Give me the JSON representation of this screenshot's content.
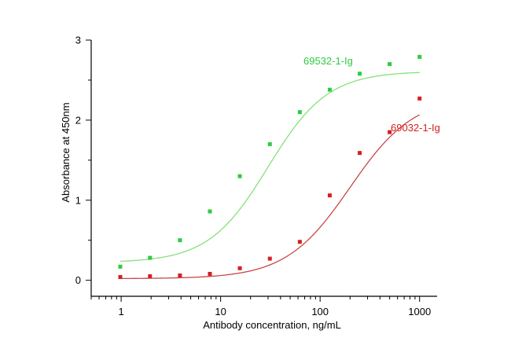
{
  "chart_data": {
    "type": "scatter",
    "title": "",
    "xlabel": "Antibody concentration, ng/mL",
    "ylabel": "Absorbance at 450nm",
    "xscale": "log",
    "xlim": [
      0.5,
      1500
    ],
    "ylim": [
      -0.2,
      3.0
    ],
    "xticks": [
      {
        "value": 1,
        "label": "1"
      },
      {
        "value": 10,
        "label": "10"
      },
      {
        "value": 100,
        "label": "100"
      },
      {
        "value": 1000,
        "label": "1000"
      }
    ],
    "yticks": [
      {
        "value": 0,
        "label": "0"
      },
      {
        "value": 1,
        "label": "1"
      },
      {
        "value": 2,
        "label": "2"
      },
      {
        "value": 3,
        "label": "3"
      }
    ],
    "grid": false,
    "fit": "4-parameter logistic (sigmoidal) curve per series",
    "series": [
      {
        "name": "69532-1-Ig",
        "color": "#2ecc40",
        "line_color": "#86e07a",
        "x": [
          0.98,
          1.95,
          3.9,
          7.8,
          15.6,
          31.25,
          62.5,
          125,
          250,
          500,
          1000
        ],
        "y": [
          0.17,
          0.28,
          0.5,
          0.86,
          1.3,
          1.7,
          2.1,
          2.38,
          2.58,
          2.7,
          2.79
        ],
        "fit_params": {
          "bottom": 0.22,
          "top": 2.61,
          "ec50": 30,
          "hill": 1.45
        }
      },
      {
        "name": "69032-1-Ig",
        "color": "#d42020",
        "line_color": "#c84848",
        "x": [
          0.98,
          1.95,
          3.9,
          7.8,
          15.6,
          31.25,
          62.5,
          125,
          250,
          500,
          1000
        ],
        "y": [
          0.04,
          0.05,
          0.06,
          0.08,
          0.15,
          0.27,
          0.48,
          1.06,
          1.59,
          1.85,
          2.27
        ],
        "fit_params": {
          "bottom": 0.02,
          "top": 2.3,
          "ec50": 200,
          "hill": 1.35
        }
      }
    ]
  }
}
